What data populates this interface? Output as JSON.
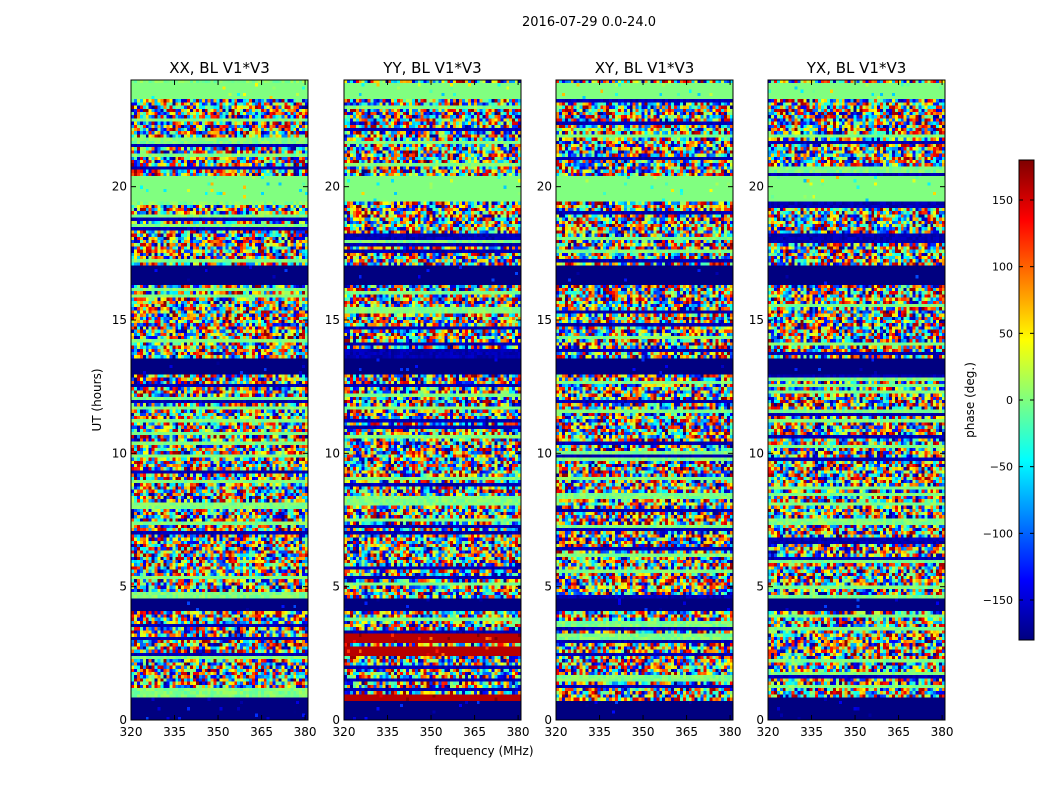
{
  "figure_title": "2016-07-29 0.0-24.0",
  "chart_data": {
    "type": "heatmap",
    "suptitle": "2016-07-29 0.0-24.0",
    "xlabel": "frequency (MHz)",
    "ylabel": "UT (hours)",
    "xlim": [
      320,
      381
    ],
    "ylim": [
      0,
      24
    ],
    "xticks": [
      320,
      335,
      350,
      365,
      380
    ],
    "yticks": [
      0,
      5,
      10,
      15,
      20
    ],
    "colorbar": {
      "label": "phase (deg.)",
      "range": [
        -180,
        180
      ],
      "ticks": [
        -150,
        -100,
        -50,
        0,
        50,
        100,
        150
      ],
      "colormap": "jet",
      "colors": [
        "#00007f",
        "#0000ff",
        "#007fff",
        "#00ffff",
        "#7fff7f",
        "#ffff00",
        "#ff7f00",
        "#ff0000",
        "#7f0000"
      ]
    },
    "panels": [
      {
        "title": "XX, BL V1*V3",
        "uniform_bands": [
          {
            "ut_range": [
              0.0,
              0.8
            ],
            "phase": -180
          },
          {
            "ut_range": [
              4.1,
              4.6
            ],
            "phase": -180
          },
          {
            "ut_range": [
              13.0,
              13.6
            ],
            "phase": -180
          },
          {
            "ut_range": [
              16.3,
              17.0
            ],
            "phase": -180
          },
          {
            "ut_range": [
              19.4,
              20.4
            ],
            "phase": 0
          },
          {
            "ut_range": [
              23.3,
              23.9
            ],
            "phase": 0
          }
        ]
      },
      {
        "title": "YY, BL V1*V3",
        "uniform_bands": [
          {
            "ut_range": [
              0.0,
              0.7
            ],
            "phase": -180
          },
          {
            "ut_range": [
              0.7,
              0.9
            ],
            "phase": 160
          },
          {
            "ut_range": [
              2.4,
              2.8
            ],
            "phase": 160
          },
          {
            "ut_range": [
              2.9,
              3.2
            ],
            "phase": 160
          },
          {
            "ut_range": [
              4.1,
              4.6
            ],
            "phase": -180
          },
          {
            "ut_range": [
              13.0,
              13.6
            ],
            "phase": -180
          },
          {
            "ut_range": [
              16.3,
              17.0
            ],
            "phase": -180
          },
          {
            "ut_range": [
              19.4,
              20.4
            ],
            "phase": 0
          },
          {
            "ut_range": [
              23.3,
              23.9
            ],
            "phase": 0
          }
        ]
      },
      {
        "title": "XY, BL V1*V3",
        "uniform_bands": [
          {
            "ut_range": [
              0.0,
              0.7
            ],
            "phase": -180
          },
          {
            "ut_range": [
              4.1,
              4.6
            ],
            "phase": -180
          },
          {
            "ut_range": [
              13.0,
              13.6
            ],
            "phase": -180
          },
          {
            "ut_range": [
              16.3,
              17.0
            ],
            "phase": -180
          },
          {
            "ut_range": [
              19.4,
              20.4
            ],
            "phase": 0
          },
          {
            "ut_range": [
              23.3,
              23.9
            ],
            "phase": 0
          }
        ]
      },
      {
        "title": "YX, BL V1*V3",
        "uniform_bands": [
          {
            "ut_range": [
              0.0,
              0.8
            ],
            "phase": -180
          },
          {
            "ut_range": [
              4.1,
              4.6
            ],
            "phase": -180
          },
          {
            "ut_range": [
              13.0,
              13.6
            ],
            "phase": -180
          },
          {
            "ut_range": [
              16.3,
              17.0
            ],
            "phase": -180
          },
          {
            "ut_range": [
              19.4,
              20.4
            ],
            "phase": 0
          },
          {
            "ut_range": [
              23.3,
              23.9
            ],
            "phase": 0
          }
        ]
      }
    ]
  }
}
